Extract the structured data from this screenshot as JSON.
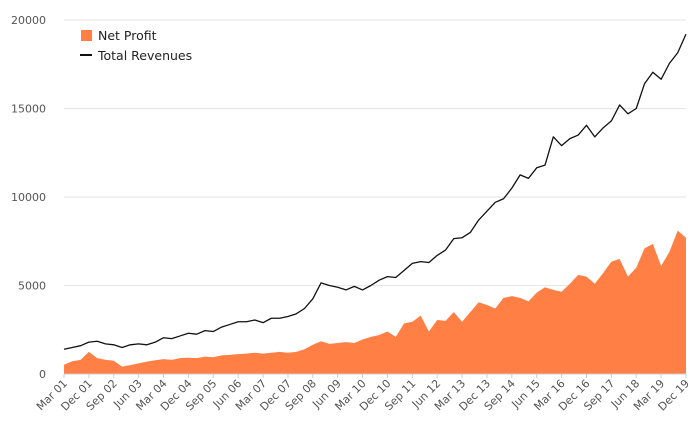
{
  "chart_data": {
    "type": "area",
    "title": "",
    "xlabel": "",
    "ylabel": "",
    "ylim": [
      0,
      20000
    ],
    "yticks": [
      0,
      5000,
      10000,
      15000,
      20000
    ],
    "x_tick_labels": [
      "Mar 01",
      "Dec 01",
      "Sep 02",
      "Jun 03",
      "Mar 04",
      "Dec 04",
      "Sep 05",
      "Jun 06",
      "Mar 07",
      "Dec 07",
      "Sep 08",
      "Jun 09",
      "Mar 10",
      "Dec 10",
      "Sep 11",
      "Jun 12",
      "Mar 13",
      "Dec 13",
      "Sep 14",
      "Jun 15",
      "Mar 16",
      "Dec 16",
      "Sep 17",
      "Jun 18",
      "Mar 19",
      "Dec 19"
    ],
    "grid": "horizontal",
    "legend_position": "top-left",
    "colors": {
      "net_profit": "#ff7f45",
      "total_revenues": "#111111"
    },
    "series": [
      {
        "name": "Net Profit",
        "kind": "area",
        "values": [
          520,
          720,
          800,
          1250,
          900,
          800,
          750,
          420,
          500,
          600,
          700,
          780,
          840,
          800,
          900,
          920,
          900,
          980,
          950,
          1050,
          1080,
          1120,
          1150,
          1200,
          1150,
          1200,
          1250,
          1200,
          1250,
          1400,
          1650,
          1850,
          1700,
          1750,
          1800,
          1750,
          1950,
          2100,
          2200,
          2400,
          2100,
          2850,
          2950,
          3300,
          2400,
          3050,
          3000,
          3500,
          2950,
          3500,
          4050,
          3900,
          3700,
          4300,
          4400,
          4300,
          4100,
          4600,
          4900,
          4750,
          4650,
          5100,
          5600,
          5500,
          5100,
          5700,
          6350,
          6500,
          5500,
          6000,
          7100,
          7350,
          6100,
          6900,
          8100,
          7700
        ]
      },
      {
        "name": "Total Revenues",
        "kind": "line",
        "values": [
          1400,
          1500,
          1600,
          1800,
          1850,
          1700,
          1650,
          1500,
          1650,
          1700,
          1650,
          1800,
          2050,
          2000,
          2150,
          2300,
          2250,
          2450,
          2400,
          2650,
          2800,
          2950,
          2950,
          3050,
          2900,
          3150,
          3150,
          3250,
          3400,
          3700,
          4250,
          5150,
          5000,
          4900,
          4750,
          4950,
          4750,
          5000,
          5300,
          5500,
          5450,
          5850,
          6250,
          6350,
          6300,
          6700,
          7000,
          7650,
          7700,
          8000,
          8700,
          9200,
          9700,
          9900,
          10500,
          11250,
          11050,
          11650,
          11800,
          13400,
          12900,
          13300,
          13500,
          14050,
          13400,
          13900,
          14300,
          15200,
          14700,
          15000,
          16400,
          17050,
          16650,
          17550,
          18150,
          19200
        ]
      }
    ]
  }
}
